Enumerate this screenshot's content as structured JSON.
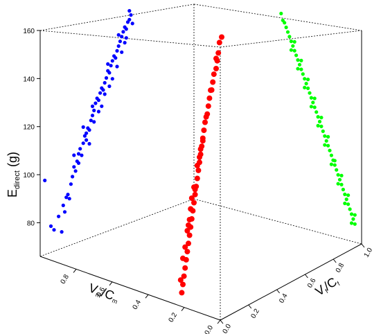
{
  "chart_data": {
    "type": "scatter",
    "title": "",
    "zlabel": {
      "main": "E",
      "sub": "direct",
      "unit": " (g)"
    },
    "xlabel": {
      "v": "V",
      "vsub": "m",
      "c": "C",
      "csub": "m"
    },
    "ylabel": {
      "v": "V",
      "vsub": "f",
      "c": "C",
      "csub": "f"
    },
    "xlim": [
      0.0,
      1.0
    ],
    "ylim": [
      0.0,
      1.0
    ],
    "zlim": [
      66,
      160
    ],
    "x_ticks": [
      "0.0",
      "0.2",
      "0.4",
      "0.6",
      "0.8"
    ],
    "y_ticks": [
      "0.0",
      "0.2",
      "0.4",
      "0.6",
      "0.8",
      "1.0"
    ],
    "z_ticks": [
      "80",
      "100",
      "120",
      "140",
      "160"
    ],
    "grid": false,
    "colors": {
      "blue": "#0000ff",
      "red": "#ff0000",
      "green": "#00ff00"
    },
    "series": [
      {
        "color": "blue",
        "projection": "on x-z wall",
        "points": [
          [
            0.97,
            97
          ],
          [
            0.93,
            77
          ],
          [
            0.91,
            75
          ],
          [
            0.88,
            80
          ],
          [
            0.86,
            73
          ],
          [
            0.85,
            84
          ],
          [
            0.84,
            81
          ],
          [
            0.83,
            87
          ],
          [
            0.82,
            88
          ],
          [
            0.81,
            86
          ],
          [
            0.8,
            92
          ],
          [
            0.79,
            95
          ],
          [
            0.78,
            99
          ],
          [
            0.77,
            97
          ],
          [
            0.76,
            101
          ],
          [
            0.75,
            104
          ],
          [
            0.74,
            106
          ],
          [
            0.73,
            103
          ],
          [
            0.72,
            108
          ],
          [
            0.71,
            111
          ],
          [
            0.7,
            112
          ],
          [
            0.69,
            114
          ],
          [
            0.68,
            113
          ],
          [
            0.67,
            117
          ],
          [
            0.66,
            119
          ],
          [
            0.65,
            121
          ],
          [
            0.64,
            124
          ],
          [
            0.63,
            126
          ],
          [
            0.62,
            125
          ],
          [
            0.61,
            128
          ],
          [
            0.6,
            130
          ],
          [
            0.59,
            129
          ],
          [
            0.58,
            132
          ],
          [
            0.57,
            134
          ],
          [
            0.56,
            137
          ],
          [
            0.55,
            136
          ],
          [
            0.54,
            139
          ],
          [
            0.53,
            141
          ],
          [
            0.52,
            143
          ],
          [
            0.51,
            142
          ],
          [
            0.5,
            145
          ],
          [
            0.49,
            147
          ],
          [
            0.48,
            149
          ],
          [
            0.47,
            151
          ],
          [
            0.46,
            153
          ],
          [
            0.45,
            155
          ],
          [
            0.44,
            154
          ],
          [
            0.43,
            157
          ],
          [
            0.42,
            158
          ],
          [
            0.41,
            160
          ],
          [
            0.75,
            100
          ],
          [
            0.7,
            109
          ],
          [
            0.65,
            116
          ],
          [
            0.6,
            122
          ],
          [
            0.55,
            130
          ],
          [
            0.5,
            138
          ],
          [
            0.45,
            148
          ],
          [
            0.68,
            107
          ],
          [
            0.72,
            115
          ],
          [
            0.62,
            120
          ],
          [
            0.58,
            127
          ],
          [
            0.53,
            133
          ],
          [
            0.47,
            144
          ],
          [
            0.44,
            150
          ],
          [
            0.4,
            156
          ],
          [
            0.78,
            104
          ],
          [
            0.66,
            123
          ],
          [
            0.56,
            140
          ],
          [
            0.49,
            152
          ],
          [
            0.42,
            162
          ]
        ]
      },
      {
        "color": "red",
        "projection": "in volume",
        "points": [
          [
            0.55,
            160
          ],
          [
            0.53,
            158
          ],
          [
            0.52,
            154
          ],
          [
            0.51,
            151
          ],
          [
            0.5,
            148
          ],
          [
            0.48,
            146
          ],
          [
            0.47,
            143
          ],
          [
            0.46,
            140
          ],
          [
            0.44,
            137
          ],
          [
            0.43,
            134
          ],
          [
            0.42,
            131
          ],
          [
            0.4,
            128
          ],
          [
            0.39,
            125
          ],
          [
            0.38,
            122
          ],
          [
            0.37,
            119
          ],
          [
            0.36,
            116
          ],
          [
            0.35,
            113
          ],
          [
            0.34,
            110
          ],
          [
            0.33,
            107
          ],
          [
            0.32,
            104
          ],
          [
            0.31,
            101
          ],
          [
            0.3,
            98
          ],
          [
            0.29,
            95
          ],
          [
            0.28,
            92
          ],
          [
            0.27,
            89
          ],
          [
            0.26,
            86
          ],
          [
            0.25,
            83
          ],
          [
            0.24,
            80
          ],
          [
            0.23,
            77
          ],
          [
            0.22,
            74
          ],
          [
            0.21,
            71
          ],
          [
            0.2,
            68
          ],
          [
            0.19,
            65
          ],
          [
            0.3,
            104
          ],
          [
            0.28,
            100
          ],
          [
            0.27,
            96
          ],
          [
            0.35,
            115
          ],
          [
            0.33,
            112
          ],
          [
            0.26,
            92
          ],
          [
            0.24,
            88
          ],
          [
            0.22,
            82
          ],
          [
            0.2,
            78
          ],
          [
            0.45,
            140
          ],
          [
            0.41,
            130
          ],
          [
            0.38,
            121
          ],
          [
            0.31,
            103
          ],
          [
            0.25,
            90
          ],
          [
            0.18,
            70
          ],
          [
            0.5,
            152
          ],
          [
            0.36,
            118
          ]
        ]
      },
      {
        "color": "green",
        "projection": "on y-z wall",
        "points": [
          [
            0.52,
            162
          ],
          [
            0.53,
            159
          ],
          [
            0.55,
            156
          ],
          [
            0.56,
            154
          ],
          [
            0.57,
            152
          ],
          [
            0.58,
            150
          ],
          [
            0.59,
            148
          ],
          [
            0.6,
            146
          ],
          [
            0.61,
            144
          ],
          [
            0.62,
            142
          ],
          [
            0.63,
            140
          ],
          [
            0.64,
            138
          ],
          [
            0.65,
            136
          ],
          [
            0.66,
            134
          ],
          [
            0.67,
            132
          ],
          [
            0.68,
            130
          ],
          [
            0.69,
            128
          ],
          [
            0.7,
            126
          ],
          [
            0.71,
            124
          ],
          [
            0.72,
            122
          ],
          [
            0.73,
            120
          ],
          [
            0.74,
            118
          ],
          [
            0.75,
            116
          ],
          [
            0.76,
            114
          ],
          [
            0.77,
            112
          ],
          [
            0.78,
            110
          ],
          [
            0.79,
            108
          ],
          [
            0.8,
            106
          ],
          [
            0.81,
            104
          ],
          [
            0.82,
            102
          ],
          [
            0.83,
            100
          ],
          [
            0.84,
            98
          ],
          [
            0.85,
            96
          ],
          [
            0.86,
            94
          ],
          [
            0.87,
            92
          ],
          [
            0.88,
            90
          ],
          [
            0.89,
            88
          ],
          [
            0.9,
            86
          ],
          [
            0.91,
            84
          ],
          [
            0.92,
            82
          ],
          [
            0.93,
            80
          ],
          [
            0.94,
            78
          ],
          [
            0.95,
            76
          ],
          [
            0.96,
            74
          ],
          [
            0.54,
            158
          ],
          [
            0.58,
            146
          ],
          [
            0.62,
            138
          ],
          [
            0.66,
            130
          ],
          [
            0.7,
            122
          ],
          [
            0.74,
            114
          ],
          [
            0.78,
            106
          ],
          [
            0.82,
            98
          ],
          [
            0.86,
            90
          ],
          [
            0.9,
            82
          ],
          [
            0.94,
            74
          ],
          [
            0.6,
            150
          ],
          [
            0.68,
            134
          ],
          [
            0.76,
            118
          ],
          [
            0.84,
            100
          ],
          [
            0.92,
            86
          ],
          [
            0.64,
            142
          ],
          [
            0.72,
            126
          ],
          [
            0.8,
            110
          ],
          [
            0.88,
            94
          ],
          [
            0.96,
            78
          ]
        ]
      }
    ]
  }
}
